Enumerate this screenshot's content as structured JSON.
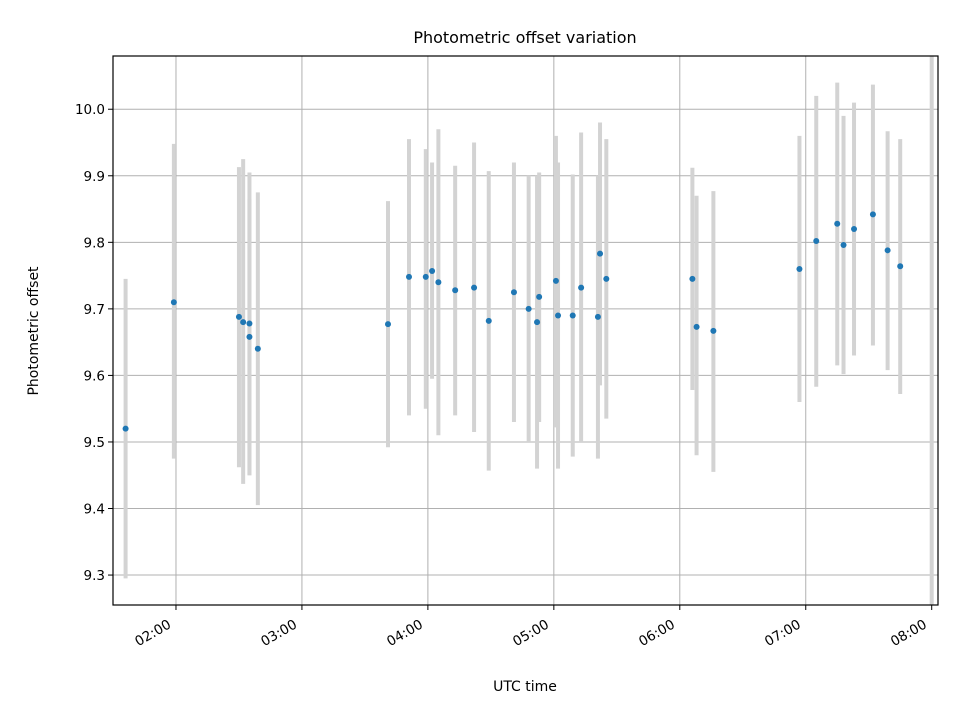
{
  "chart_data": {
    "type": "scatter",
    "title": "Photometric offset variation",
    "xlabel": "UTC time",
    "ylabel": "Photometric offset",
    "grid": true,
    "xlim": [
      "01:30",
      "08:03"
    ],
    "ylim": [
      9.255,
      10.08
    ],
    "x_ticks": [
      "02:00",
      "03:00",
      "04:00",
      "05:00",
      "06:00",
      "07:00",
      "08:00"
    ],
    "y_ticks": [
      "9.3",
      "9.4",
      "9.5",
      "9.6",
      "9.7",
      "9.8",
      "9.9",
      "10.0"
    ],
    "series": [
      {
        "color": "#1f77b4",
        "errorbar_color": "#d3d3d3",
        "points": [
          {
            "x": "01:36",
            "y": 9.52,
            "ylo": 9.295,
            "yhi": 9.745
          },
          {
            "x": "01:59",
            "y": 9.71,
            "ylo": 9.475,
            "yhi": 9.948
          },
          {
            "x": "02:30",
            "y": 9.688,
            "ylo": 9.462,
            "yhi": 9.913
          },
          {
            "x": "02:32",
            "y": 9.68,
            "ylo": 9.437,
            "yhi": 9.925
          },
          {
            "x": "02:35",
            "y": 9.678,
            "ylo": 9.45,
            "yhi": 9.905
          },
          {
            "x": "02:35",
            "y": 9.658,
            "ylo": 9.45,
            "yhi": 9.865
          },
          {
            "x": "02:39",
            "y": 9.64,
            "ylo": 9.405,
            "yhi": 9.875
          },
          {
            "x": "03:41",
            "y": 9.677,
            "ylo": 9.492,
            "yhi": 9.862
          },
          {
            "x": "03:51",
            "y": 9.748,
            "ylo": 9.54,
            "yhi": 9.955
          },
          {
            "x": "03:59",
            "y": 9.748,
            "ylo": 9.55,
            "yhi": 9.94
          },
          {
            "x": "04:02",
            "y": 9.757,
            "ylo": 9.595,
            "yhi": 9.92
          },
          {
            "x": "04:05",
            "y": 9.74,
            "ylo": 9.51,
            "yhi": 9.97
          },
          {
            "x": "04:13",
            "y": 9.728,
            "ylo": 9.54,
            "yhi": 9.915
          },
          {
            "x": "04:22",
            "y": 9.732,
            "ylo": 9.515,
            "yhi": 9.95
          },
          {
            "x": "04:29",
            "y": 9.682,
            "ylo": 9.457,
            "yhi": 9.907
          },
          {
            "x": "04:41",
            "y": 9.725,
            "ylo": 9.53,
            "yhi": 9.92
          },
          {
            "x": "04:48",
            "y": 9.7,
            "ylo": 9.5,
            "yhi": 9.9
          },
          {
            "x": "04:52",
            "y": 9.68,
            "ylo": 9.46,
            "yhi": 9.9
          },
          {
            "x": "04:53",
            "y": 9.718,
            "ylo": 9.53,
            "yhi": 9.905
          },
          {
            "x": "05:01",
            "y": 9.742,
            "ylo": 9.522,
            "yhi": 9.96
          },
          {
            "x": "05:02",
            "y": 9.69,
            "ylo": 9.46,
            "yhi": 9.92
          },
          {
            "x": "05:09",
            "y": 9.69,
            "ylo": 9.478,
            "yhi": 9.902
          },
          {
            "x": "05:13",
            "y": 9.732,
            "ylo": 9.5,
            "yhi": 9.965
          },
          {
            "x": "05:21",
            "y": 9.688,
            "ylo": 9.475,
            "yhi": 9.9
          },
          {
            "x": "05:22",
            "y": 9.783,
            "ylo": 9.585,
            "yhi": 9.98
          },
          {
            "x": "05:25",
            "y": 9.745,
            "ylo": 9.535,
            "yhi": 9.955
          },
          {
            "x": "06:06",
            "y": 9.745,
            "ylo": 9.578,
            "yhi": 9.912
          },
          {
            "x": "06:08",
            "y": 9.673,
            "ylo": 9.48,
            "yhi": 9.87
          },
          {
            "x": "06:16",
            "y": 9.667,
            "ylo": 9.455,
            "yhi": 9.877
          },
          {
            "x": "06:57",
            "y": 9.76,
            "ylo": 9.56,
            "yhi": 9.96
          },
          {
            "x": "07:05",
            "y": 9.802,
            "ylo": 9.583,
            "yhi": 10.02
          },
          {
            "x": "07:15",
            "y": 9.828,
            "ylo": 9.615,
            "yhi": 10.04
          },
          {
            "x": "07:18",
            "y": 9.796,
            "ylo": 9.602,
            "yhi": 9.99
          },
          {
            "x": "07:23",
            "y": 9.82,
            "ylo": 9.63,
            "yhi": 10.01
          },
          {
            "x": "07:32",
            "y": 9.842,
            "ylo": 9.645,
            "yhi": 10.037
          },
          {
            "x": "07:39",
            "y": 9.788,
            "ylo": 9.608,
            "yhi": 9.967
          },
          {
            "x": "07:45",
            "y": 9.764,
            "ylo": 9.572,
            "yhi": 9.955
          },
          {
            "x": "08:00",
            "y": null,
            "ylo": 9.255,
            "yhi": 10.08
          }
        ]
      }
    ]
  }
}
